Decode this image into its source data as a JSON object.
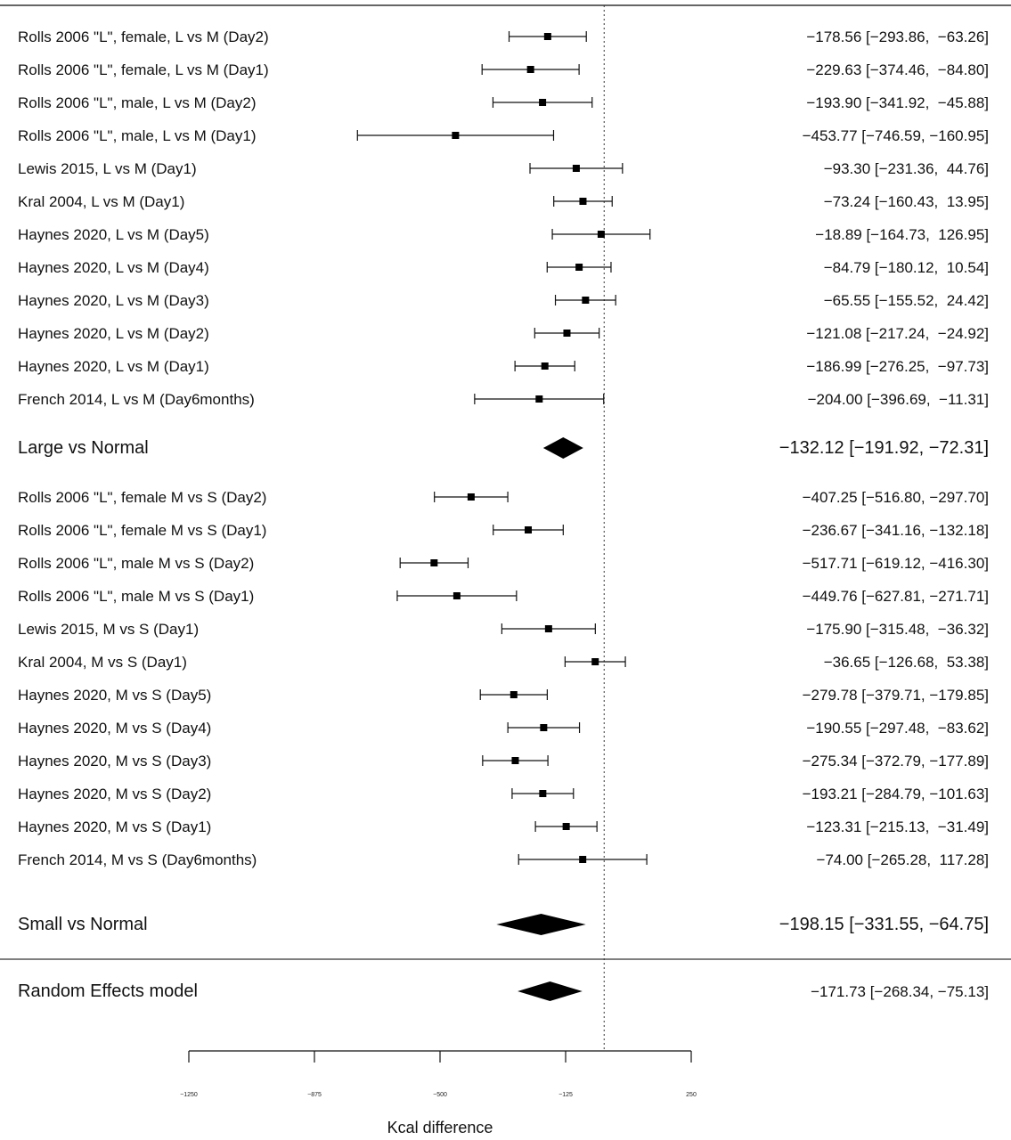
{
  "chart_data": {
    "type": "forest",
    "xlabel": "Kcal difference",
    "xlim": [
      -1250,
      250
    ],
    "ticks": [
      -1250,
      -875,
      -500,
      -125,
      250
    ],
    "tick_labels": [
      "−1250",
      "−875",
      "−500",
      "−125",
      "250"
    ],
    "reference_line": -10,
    "rows": [
      {
        "label": "Rolls 2006 \"L\", female, L vs M (Day2)",
        "est": -178.56,
        "lo": -293.86,
        "hi": -63.26,
        "text": "−178.56 [−293.86,  −63.26]"
      },
      {
        "label": "Rolls 2006 \"L\", female, L vs M (Day1)",
        "est": -229.63,
        "lo": -374.46,
        "hi": -84.8,
        "text": "−229.63 [−374.46,  −84.80]"
      },
      {
        "label": "Rolls 2006 \"L\", male, L vs M (Day2)",
        "est": -193.9,
        "lo": -341.92,
        "hi": -45.88,
        "text": "−193.90 [−341.92,  −45.88]"
      },
      {
        "label": "Rolls 2006 \"L\", male, L vs M (Day1)",
        "est": -453.77,
        "lo": -746.59,
        "hi": -160.95,
        "text": "−453.77 [−746.59, −160.95]"
      },
      {
        "label": "Lewis 2015, L vs M (Day1)",
        "est": -93.3,
        "lo": -231.36,
        "hi": 44.76,
        "text": "−93.30 [−231.36,  44.76]"
      },
      {
        "label": "Kral 2004, L vs M (Day1)",
        "est": -73.24,
        "lo": -160.43,
        "hi": 13.95,
        "text": "−73.24 [−160.43,  13.95]"
      },
      {
        "label": "Haynes 2020, L vs M (Day5)",
        "est": -18.89,
        "lo": -164.73,
        "hi": 126.95,
        "text": "−18.89 [−164.73,  126.95]"
      },
      {
        "label": "Haynes 2020, L vs M (Day4)",
        "est": -84.79,
        "lo": -180.12,
        "hi": 10.54,
        "text": "−84.79 [−180.12,  10.54]"
      },
      {
        "label": "Haynes 2020, L vs M (Day3)",
        "est": -65.55,
        "lo": -155.52,
        "hi": 24.42,
        "text": "−65.55 [−155.52,  24.42]"
      },
      {
        "label": "Haynes 2020, L vs M (Day2)",
        "est": -121.08,
        "lo": -217.24,
        "hi": -24.92,
        "text": "−121.08 [−217.24,  −24.92]"
      },
      {
        "label": "Haynes 2020, L vs M (Day1)",
        "est": -186.99,
        "lo": -276.25,
        "hi": -97.73,
        "text": "−186.99 [−276.25,  −97.73]"
      },
      {
        "label": "French 2014, L vs M (Day6months)",
        "est": -204.0,
        "lo": -396.69,
        "hi": -11.31,
        "text": "−204.00 [−396.69,  −11.31]"
      },
      {
        "label": "Large vs Normal",
        "est": -132.12,
        "lo": -191.92,
        "hi": -72.31,
        "text": "−132.12 [−191.92, −72.31]",
        "summary": true
      },
      {
        "label": "Rolls 2006 \"L\", female M vs S (Day2)",
        "est": -407.25,
        "lo": -516.8,
        "hi": -297.7,
        "text": "−407.25 [−516.80, −297.70]"
      },
      {
        "label": "Rolls 2006 \"L\", female M vs S (Day1)",
        "est": -236.67,
        "lo": -341.16,
        "hi": -132.18,
        "text": "−236.67 [−341.16, −132.18]"
      },
      {
        "label": "Rolls 2006 \"L\", male M vs S (Day2)",
        "est": -517.71,
        "lo": -619.12,
        "hi": -416.3,
        "text": "−517.71 [−619.12, −416.30]"
      },
      {
        "label": "Rolls 2006 \"L\", male M vs S (Day1)",
        "est": -449.76,
        "lo": -627.81,
        "hi": -271.71,
        "text": "−449.76 [−627.81, −271.71]"
      },
      {
        "label": "Lewis 2015, M vs S (Day1)",
        "est": -175.9,
        "lo": -315.48,
        "hi": -36.32,
        "text": "−175.90 [−315.48,  −36.32]"
      },
      {
        "label": "Kral 2004, M vs S (Day1)",
        "est": -36.65,
        "lo": -126.68,
        "hi": 53.38,
        "text": "−36.65 [−126.68,  53.38]"
      },
      {
        "label": "Haynes 2020, M vs S (Day5)",
        "est": -279.78,
        "lo": -379.71,
        "hi": -179.85,
        "text": "−279.78 [−379.71, −179.85]"
      },
      {
        "label": "Haynes 2020, M vs S (Day4)",
        "est": -190.55,
        "lo": -297.48,
        "hi": -83.62,
        "text": "−190.55 [−297.48,  −83.62]"
      },
      {
        "label": "Haynes 2020, M vs S (Day3)",
        "est": -275.34,
        "lo": -372.79,
        "hi": -177.89,
        "text": "−275.34 [−372.79, −177.89]"
      },
      {
        "label": "Haynes 2020, M vs S (Day2)",
        "est": -193.21,
        "lo": -284.79,
        "hi": -101.63,
        "text": "−193.21 [−284.79, −101.63]"
      },
      {
        "label": "Haynes 2020, M vs S (Day1)",
        "est": -123.31,
        "lo": -215.13,
        "hi": -31.49,
        "text": "−123.31 [−215.13,  −31.49]"
      },
      {
        "label": "French 2014, M vs S (Day6months)",
        "est": -74.0,
        "lo": -265.28,
        "hi": 117.28,
        "text": "−74.00 [−265.28,  117.28]"
      },
      {
        "label": "Small vs Normal",
        "est": -198.15,
        "lo": -331.55,
        "hi": -64.75,
        "text": "−198.15 [−331.55, −64.75]",
        "summary": true
      },
      {
        "label": "Random Effects model",
        "est": -171.73,
        "lo": -268.34,
        "hi": -75.13,
        "text": "−171.73 [−268.34, −75.13]",
        "summary": true,
        "overall": true
      }
    ]
  }
}
